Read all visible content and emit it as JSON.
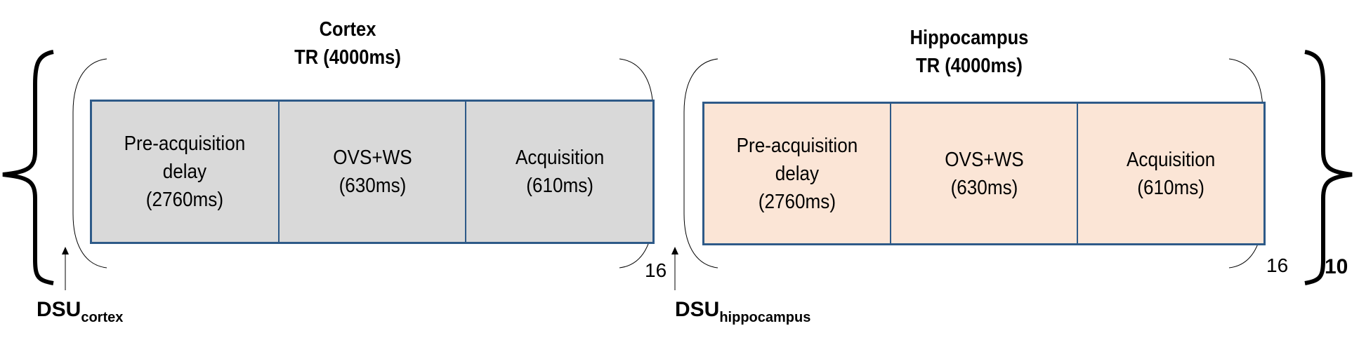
{
  "colors": {
    "cortex_fill": "#d9d9d9",
    "hippocampus_fill": "#fbe5d6",
    "border": "#2e5a88"
  },
  "blocks": [
    {
      "region": "Cortex",
      "tr": "TR (4000ms)",
      "repeat": "16",
      "cells": [
        "Pre-acquisition\ndelay\n(2760ms)",
        "OVS+WS\n(630ms)",
        "Acquisition\n(610ms)"
      ],
      "dsu": "DSU",
      "dsu_sub": "cortex"
    },
    {
      "region": "Hippocampus",
      "tr": "TR (4000ms)",
      "repeat": "16",
      "cells": [
        "Pre-acquisition\ndelay\n(2760ms)",
        "OVS+WS\n(630ms)",
        "Acquisition\n(610ms)"
      ],
      "dsu": "DSU",
      "dsu_sub": "hippocampus"
    }
  ],
  "outer_repeat": "10"
}
